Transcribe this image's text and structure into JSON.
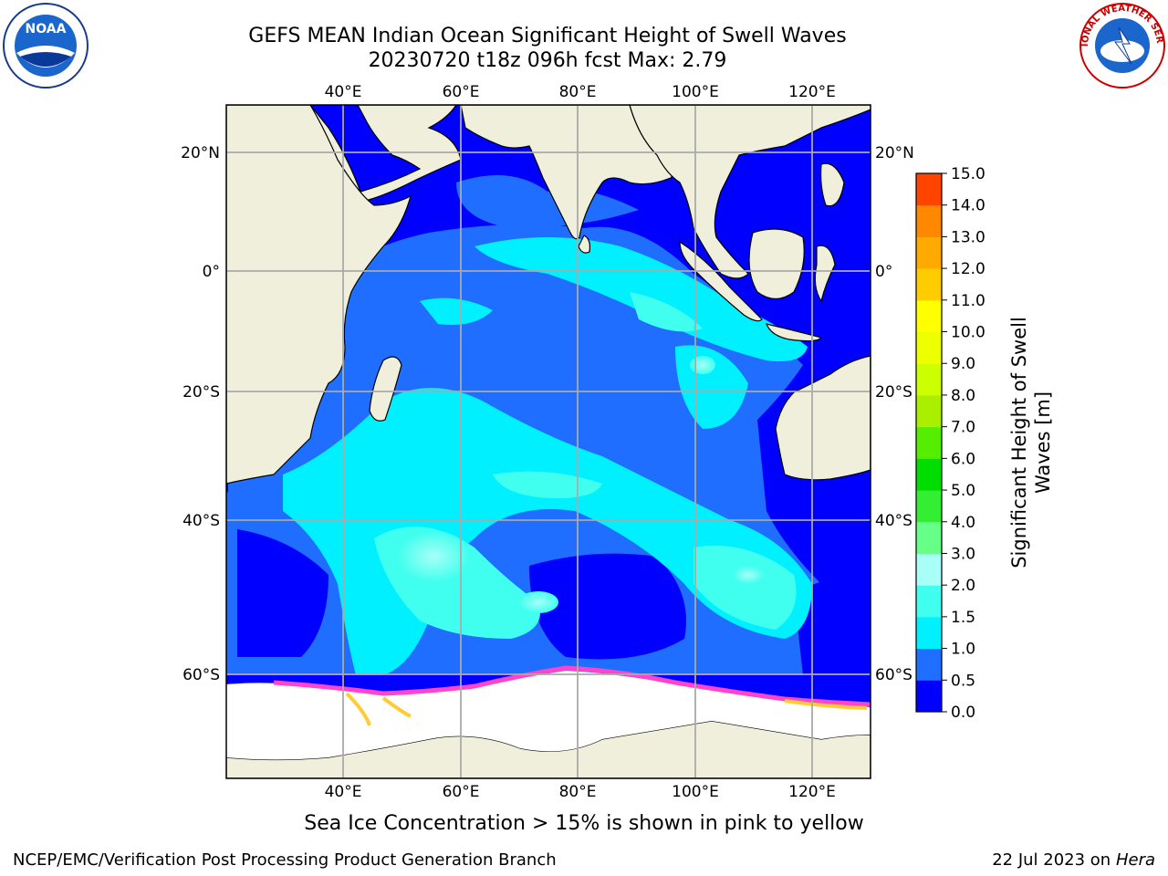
{
  "title_line1": "GEFS MEAN Indian Ocean Significant Height of Swell Waves",
  "title_line2": "20230720 t18z 096h fcst   Max: 2.79",
  "caption": "Sea Ice Concentration > 15% is shown in pink to yellow",
  "footer_left": "NCEP/EMC/Verification Post Processing Product Generation Branch",
  "footer_right_date": "22 Jul 2023 on ",
  "footer_right_host": "Hera",
  "logos": {
    "left": "NOAA",
    "right": "NATIONAL WEATHER SERVICE"
  },
  "map": {
    "lon_ticks": [
      "40°E",
      "60°E",
      "80°E",
      "100°E",
      "120°E"
    ],
    "lat_ticks_left": [
      "20°N",
      "0°",
      "20°S",
      "40°S",
      "60°S"
    ],
    "lat_ticks_right": [
      "20°N",
      "0°",
      "20°S",
      "40°S",
      "60°S"
    ]
  },
  "colorbar": {
    "label_line1": "Significant Height of Swell",
    "label_line2": "Waves [m]",
    "ticks": [
      "0.0",
      "0.5",
      "1.0",
      "1.5",
      "2.0",
      "3.0",
      "4.0",
      "5.0",
      "6.0",
      "7.0",
      "8.0",
      "9.0",
      "10.0",
      "11.0",
      "12.0",
      "13.0",
      "14.0",
      "15.0"
    ],
    "colors": [
      "#0000ff",
      "#1f6eff",
      "#00f0ff",
      "#40ffee",
      "#a8fff8",
      "#66ff88",
      "#33ee33",
      "#00dd00",
      "#55ee00",
      "#aaee00",
      "#ccff00",
      "#eeff00",
      "#ffff00",
      "#ffcc00",
      "#ffaa00",
      "#ff8800",
      "#ff4400",
      "#ff0000"
    ]
  },
  "colors": {
    "land": "#efefdc",
    "ocean_deep": "#0000ff",
    "ice": "#ffffff",
    "ice_edge": "#ff44cc"
  }
}
